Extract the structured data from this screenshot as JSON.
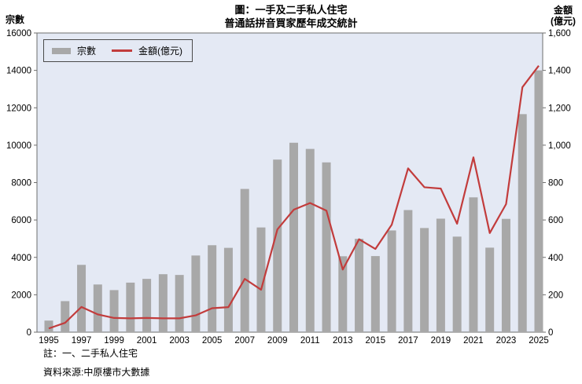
{
  "title": {
    "line1": "圖：一手及二手私人住宅",
    "line2": "普通話拼音買家歷年成交統計"
  },
  "left_axis": {
    "title": "宗數",
    "ticks": [
      "0",
      "2000",
      "4000",
      "6000",
      "8000",
      "10000",
      "12000",
      "14000",
      "16000"
    ],
    "max": 16000
  },
  "right_axis": {
    "title_line1": "金額",
    "title_line2": "(億元)",
    "ticks": [
      "0",
      "200",
      "400",
      "600",
      "800",
      "1,000",
      "1,200",
      "1,400",
      "1,600"
    ],
    "max": 1600
  },
  "legend": {
    "bars_label": "宗數",
    "line_label": "金額(億元)"
  },
  "footnotes": {
    "note": "註：一、二手私人住宅",
    "source": "資料來源:中原樓市大數據"
  },
  "colors": {
    "bar": "#a8a8a8",
    "line": "#c23c3c",
    "plot_bg": "#e4e9f4",
    "plot_border": "#6e6e6e",
    "text": "#000000"
  },
  "chart_data": {
    "type": "bar",
    "subtype": "bar-with-line-overlay",
    "title": "圖：一手及二手私人住宅 普通話拼音買家歷年成交統計",
    "categories": [
      1995,
      1996,
      1997,
      1998,
      1999,
      2000,
      2001,
      2002,
      2003,
      2004,
      2005,
      2006,
      2007,
      2008,
      2009,
      2010,
      2011,
      2012,
      2013,
      2014,
      2015,
      2016,
      2017,
      2018,
      2019,
      2020,
      2021,
      2022,
      2023,
      2024,
      2025
    ],
    "x_tick_labels": [
      "1995",
      "1997",
      "1999",
      "2001",
      "2003",
      "2005",
      "2007",
      "2009",
      "2011",
      "2013",
      "2015",
      "2017",
      "2019",
      "2021",
      "2023",
      "2025"
    ],
    "series": [
      {
        "name": "宗數",
        "type": "bar",
        "axis": "left",
        "values": [
          620,
          1660,
          3600,
          2550,
          2250,
          2650,
          2850,
          3100,
          3060,
          4100,
          4650,
          4510,
          7660,
          5600,
          9230,
          10130,
          9800,
          9080,
          4060,
          4990,
          4070,
          5440,
          6530,
          5570,
          6070,
          5110,
          7210,
          4520,
          6060,
          11660,
          14000
        ]
      },
      {
        "name": "金額(億元)",
        "type": "line",
        "axis": "right",
        "values": [
          20,
          50,
          135,
          95,
          76,
          74,
          76,
          74,
          74,
          90,
          128,
          134,
          285,
          227,
          550,
          655,
          691,
          650,
          335,
          497,
          445,
          575,
          876,
          775,
          768,
          580,
          935,
          530,
          685,
          1310,
          1425
        ]
      }
    ],
    "left_ylim": [
      0,
      16000
    ],
    "right_ylim": [
      0,
      1600
    ],
    "grid": false,
    "legend_position": "top-left-inside"
  }
}
